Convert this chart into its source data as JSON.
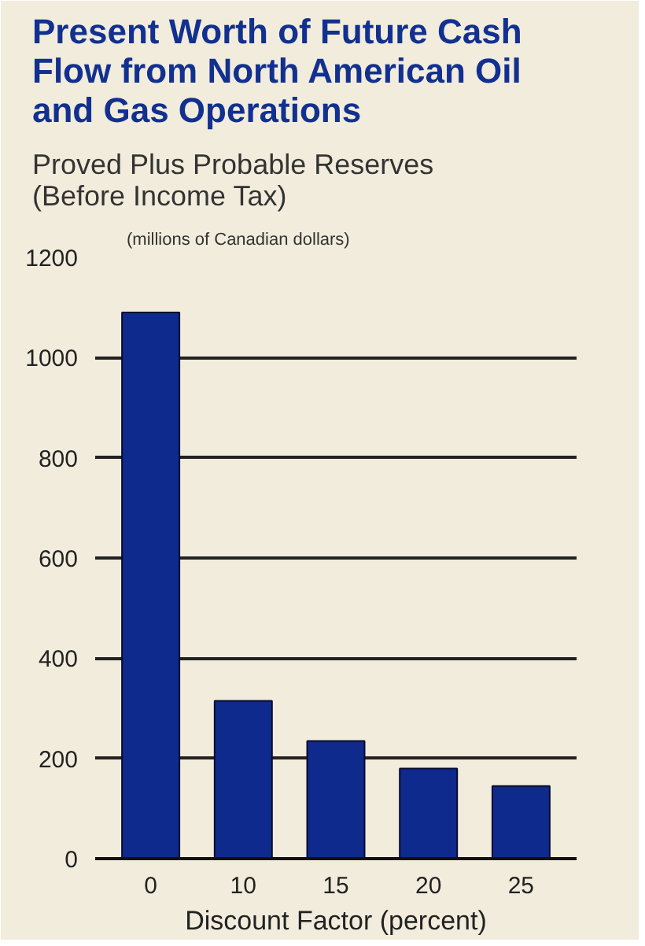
{
  "chart_data": {
    "type": "bar",
    "title": "Present Worth of Future Cash Flow from North American Oil and Gas Operations",
    "subtitle": "Proved Plus Probable Reserves (Before Income Tax)",
    "ylabel": "(millions of Canadian dollars)",
    "xlabel": "Discount Factor (percent)",
    "categories": [
      "0",
      "10",
      "15",
      "20",
      "25"
    ],
    "values": [
      1090,
      315,
      235,
      180,
      145
    ],
    "color": "#0d2a8c",
    "ylim": [
      0,
      1200
    ],
    "yticks": [
      0,
      200,
      400,
      600,
      800,
      1000,
      1200
    ],
    "grid": "y"
  }
}
